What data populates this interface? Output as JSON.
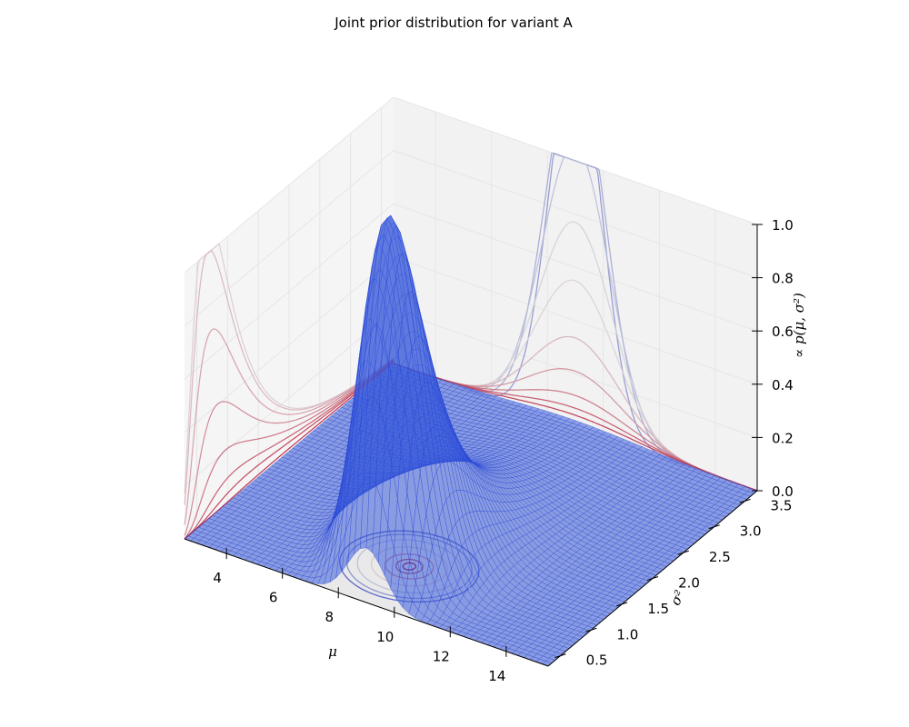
{
  "chart_data": {
    "type": "surface3d",
    "title": "Joint prior distribution for variant A",
    "xlabel": "μ",
    "ylabel": "σ²",
    "zlabel": "∝ p(μ, σ²)",
    "xlim": [
      2.5,
      15.5
    ],
    "ylim": [
      0.3,
      3.7
    ],
    "zlim": [
      0,
      1.0
    ],
    "x_ticks": [
      "4",
      "6",
      "8",
      "10",
      "12",
      "14"
    ],
    "y_ticks": [
      "0.5",
      "1.0",
      "1.5",
      "2.0",
      "2.5",
      "3.0",
      "3.5"
    ],
    "z_ticks": [
      "0.0",
      "0.2",
      "0.4",
      "0.6",
      "0.8",
      "1.0"
    ],
    "grid": true,
    "peak": {
      "mu": 9.0,
      "sigma2": 1.0,
      "z": 1.0
    },
    "colormap": "coolwarm",
    "colors": {
      "surface_fill": "#3b5bdb",
      "surface_edge": "#2846d6",
      "pane": "#f2f2f2",
      "grid": "#e6e6e6"
    }
  }
}
